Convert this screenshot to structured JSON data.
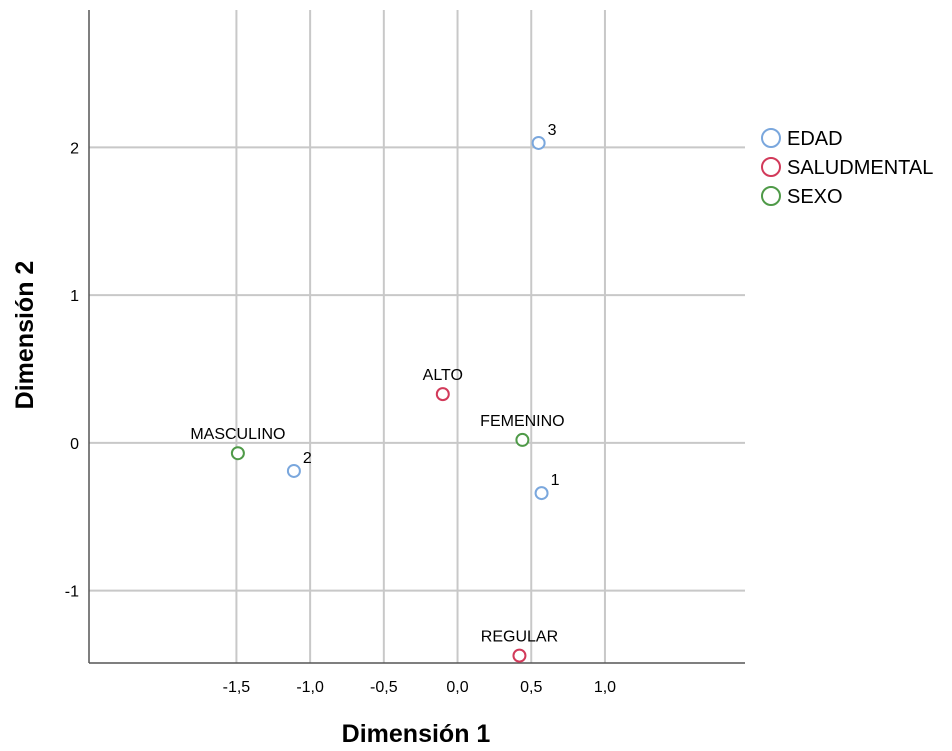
{
  "chart_data": {
    "type": "scatter",
    "xlabel": "Dimensión 1",
    "ylabel": "Dimensión 2",
    "xlim": [
      -2.5,
      1.95
    ],
    "ylim": [
      -1.49,
      2.93
    ],
    "x_ticks": [
      -1.5,
      -1.0,
      -0.5,
      0.0,
      0.5,
      1.0
    ],
    "x_tick_labels": [
      "-1,5",
      "-1,0",
      "-0,5",
      "0,0",
      "0,5",
      "1,0"
    ],
    "y_ticks": [
      -1,
      0,
      1,
      2
    ],
    "y_tick_labels": [
      "-1",
      "0",
      "1",
      "2"
    ],
    "grid": true,
    "legend_position": "right",
    "series": [
      {
        "name": "EDAD",
        "color": "#7aa7dd",
        "points": [
          {
            "label": "1",
            "x": 0.57,
            "y": -0.34
          },
          {
            "label": "2",
            "x": -1.11,
            "y": -0.19
          },
          {
            "label": "3",
            "x": 0.55,
            "y": 2.03
          }
        ]
      },
      {
        "name": "SALUDMENTAL",
        "color": "#d23a5a",
        "points": [
          {
            "label": "ALTO",
            "x": -0.1,
            "y": 0.33
          },
          {
            "label": "REGULAR",
            "x": 0.42,
            "y": -1.44
          }
        ]
      },
      {
        "name": "SEXO",
        "color": "#4f9a48",
        "points": [
          {
            "label": "FEMENINO",
            "x": 0.44,
            "y": 0.02
          },
          {
            "label": "MASCULINO",
            "x": -1.49,
            "y": -0.07
          }
        ]
      }
    ]
  }
}
